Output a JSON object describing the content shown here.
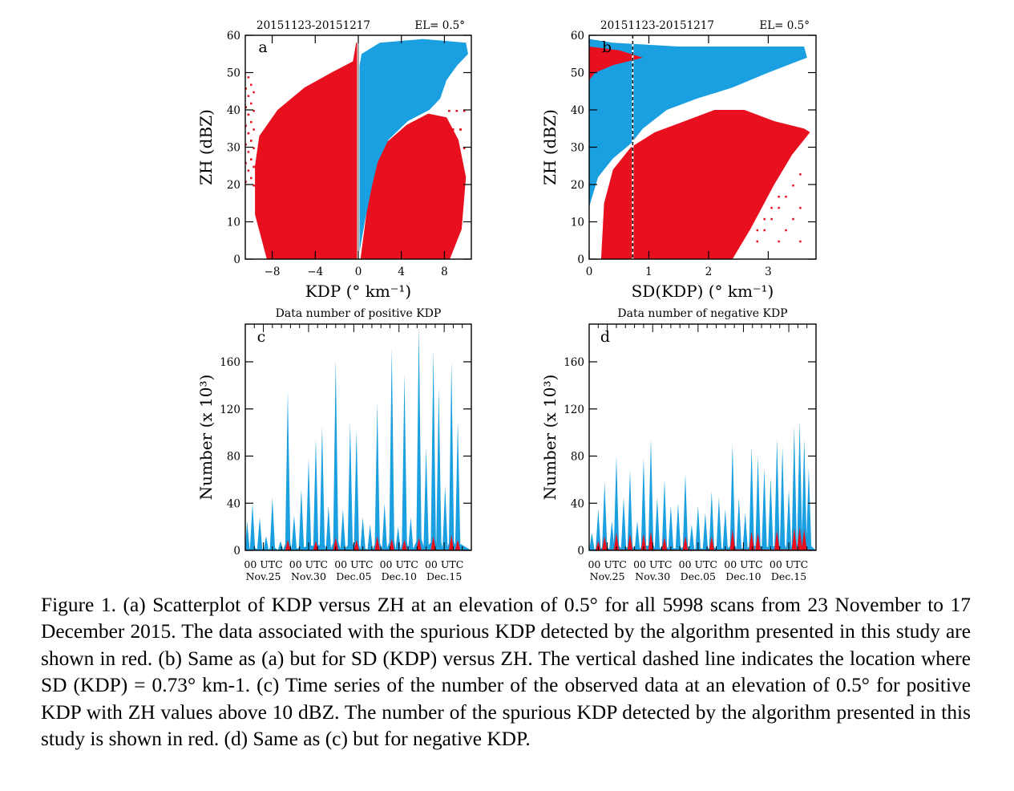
{
  "colors": {
    "blue": "#1a9fe0",
    "red": "#e8101e",
    "axis": "#000000"
  },
  "chart_data": [
    {
      "panel": "a",
      "type": "scatter",
      "header_left": "20151123-20151217",
      "header_right": "EL=  0.5°",
      "xlabel": "KDP (° km⁻¹)",
      "ylabel": "ZH (dBZ)",
      "xlim": [
        -10.5,
        10.5
      ],
      "ylim": [
        0,
        60
      ],
      "xticks": [
        "−8",
        "−4",
        "0",
        "4",
        "8"
      ],
      "xtick_values": [
        -8,
        -4,
        0,
        4,
        8
      ],
      "yticks": [
        "0",
        "10",
        "20",
        "30",
        "40",
        "50",
        "60"
      ],
      "ytick_values": [
        0,
        10,
        20,
        30,
        40,
        50,
        60
      ],
      "reference_line": {
        "x": 0,
        "style": "solid"
      },
      "series": [
        {
          "color": "red",
          "description_points": [
            [
              -8.5,
              0
            ],
            [
              -9.5,
              20
            ],
            [
              -9.3,
              30
            ],
            [
              -5,
              45
            ],
            [
              -0.3,
              54
            ]
          ]
        },
        {
          "color": "blue",
          "description_points": [
            [
              0,
              0
            ],
            [
              1.5,
              20
            ],
            [
              4,
              40
            ],
            [
              7.5,
              50
            ],
            [
              9.8,
              56
            ],
            [
              1,
              58
            ]
          ]
        }
      ]
    },
    {
      "panel": "b",
      "type": "scatter",
      "header_left": "20151123-20151217",
      "header_right": "EL=  0.5°",
      "xlabel": "SD(KDP) (° km⁻¹)",
      "ylabel": "ZH (dBZ)",
      "xlim": [
        0,
        3.8
      ],
      "ylim": [
        0,
        60
      ],
      "xticks": [
        "0",
        "1",
        "2",
        "3"
      ],
      "xtick_values": [
        0,
        1,
        2,
        3
      ],
      "yticks": [
        "0",
        "10",
        "20",
        "30",
        "40",
        "50",
        "60"
      ],
      "ytick_values": [
        0,
        10,
        20,
        30,
        40,
        50,
        60
      ],
      "reference_line": {
        "x": 0.73,
        "style": "dashed"
      },
      "series": [
        {
          "color": "blue",
          "description_points": [
            [
              0,
              20
            ],
            [
              0.7,
              30
            ],
            [
              2,
              43
            ],
            [
              3.6,
              56
            ]
          ]
        },
        {
          "color": "red",
          "description_points": [
            [
              0.25,
              0
            ],
            [
              0.7,
              30
            ],
            [
              2.5,
              40
            ],
            [
              3.7,
              35
            ]
          ]
        }
      ]
    },
    {
      "panel": "c",
      "type": "area",
      "title": "Data number of positive KDP",
      "ylabel": "Number (x 10³)",
      "ylim": [
        0,
        192
      ],
      "yticks": [
        "0",
        "40",
        "80",
        "120",
        "160"
      ],
      "ytick_values": [
        0,
        40,
        80,
        120,
        160
      ],
      "xticks_top": [
        "00 UTC",
        "00 UTC",
        "00 UTC",
        "00 UTC",
        "00 UTC"
      ],
      "xticks_bottom": [
        "Nov.25",
        "Nov.30",
        "Dec.05",
        "Dec.10",
        "Dec.15"
      ],
      "x_days": [
        2,
        7,
        12,
        17,
        22
      ],
      "xlim_days": [
        0,
        25
      ],
      "series": [
        {
          "name": "",
          "color": "blue",
          "peaks": [
            [
              0.2,
              25
            ],
            [
              0.8,
              40
            ],
            [
              1.6,
              28
            ],
            [
              2.3,
              12
            ],
            [
              3.0,
              45
            ],
            [
              3.9,
              8
            ],
            [
              4.7,
              135
            ],
            [
              5.4,
              30
            ],
            [
              6.2,
              52
            ],
            [
              7.0,
              78
            ],
            [
              7.8,
              95
            ],
            [
              8.5,
              105
            ],
            [
              9.2,
              38
            ],
            [
              10.0,
              162
            ],
            [
              10.8,
              35
            ],
            [
              11.6,
              108
            ],
            [
              12.3,
              102
            ],
            [
              13.0,
              28
            ],
            [
              13.8,
              22
            ],
            [
              14.6,
              125
            ],
            [
              15.4,
              40
            ],
            [
              16.2,
              172
            ],
            [
              16.9,
              20
            ],
            [
              17.6,
              150
            ],
            [
              18.3,
              28
            ],
            [
              19.2,
              190
            ],
            [
              20.0,
              88
            ],
            [
              20.8,
              170
            ],
            [
              21.4,
              138
            ],
            [
              22.1,
              55
            ],
            [
              22.8,
              160
            ],
            [
              23.5,
              110
            ]
          ]
        },
        {
          "name": "",
          "color": "red",
          "peaks": [
            [
              4.7,
              9
            ],
            [
              7.8,
              8
            ],
            [
              10.0,
              11
            ],
            [
              12.3,
              9
            ],
            [
              14.6,
              12
            ],
            [
              16.2,
              10
            ],
            [
              17.6,
              9
            ],
            [
              19.2,
              11
            ],
            [
              20.8,
              12
            ],
            [
              22.8,
              13
            ],
            [
              23.5,
              9
            ]
          ]
        }
      ]
    },
    {
      "panel": "d",
      "type": "area",
      "title": "Data number of negative KDP",
      "ylabel": "Number (x 10³)",
      "ylim": [
        0,
        192
      ],
      "yticks": [
        "0",
        "40",
        "80",
        "120",
        "160"
      ],
      "ytick_values": [
        0,
        40,
        80,
        120,
        160
      ],
      "xticks_top": [
        "00 UTC",
        "00 UTC",
        "00 UTC",
        "00 UTC",
        "00 UTC"
      ],
      "xticks_bottom": [
        "Nov.25",
        "Nov.30",
        "Dec.05",
        "Dec.10",
        "Dec.15"
      ],
      "x_days": [
        2,
        7,
        12,
        17,
        22
      ],
      "xlim_days": [
        0,
        25
      ],
      "series": [
        {
          "name": "",
          "color": "blue",
          "peaks": [
            [
              0.3,
              15
            ],
            [
              1.0,
              35
            ],
            [
              1.7,
              58
            ],
            [
              2.5,
              25
            ],
            [
              3.0,
              80
            ],
            [
              3.8,
              45
            ],
            [
              4.5,
              68
            ],
            [
              5.3,
              25
            ],
            [
              6.0,
              78
            ],
            [
              6.8,
              95
            ],
            [
              7.5,
              45
            ],
            [
              8.3,
              60
            ],
            [
              9.0,
              38
            ],
            [
              9.8,
              40
            ],
            [
              10.6,
              65
            ],
            [
              11.3,
              22
            ],
            [
              12.0,
              38
            ],
            [
              12.8,
              32
            ],
            [
              13.5,
              50
            ],
            [
              14.3,
              45
            ],
            [
              15.0,
              35
            ],
            [
              15.8,
              90
            ],
            [
              16.5,
              45
            ],
            [
              17.2,
              32
            ],
            [
              17.9,
              88
            ],
            [
              18.6,
              80
            ],
            [
              19.3,
              70
            ],
            [
              20.0,
              62
            ],
            [
              20.7,
              95
            ],
            [
              21.3,
              88
            ],
            [
              22.0,
              52
            ],
            [
              22.6,
              105
            ],
            [
              23.2,
              110
            ],
            [
              23.7,
              95
            ],
            [
              24.2,
              70
            ]
          ]
        },
        {
          "name": "",
          "color": "red",
          "peaks": [
            [
              1.0,
              8
            ],
            [
              1.7,
              12
            ],
            [
              3.0,
              15
            ],
            [
              4.5,
              14
            ],
            [
              6.0,
              14
            ],
            [
              6.8,
              16
            ],
            [
              8.3,
              11
            ],
            [
              10.6,
              12
            ],
            [
              13.5,
              12
            ],
            [
              15.8,
              18
            ],
            [
              17.9,
              16
            ],
            [
              18.6,
              15
            ],
            [
              20.7,
              17
            ],
            [
              22.6,
              19
            ],
            [
              23.2,
              20
            ],
            [
              23.7,
              18
            ]
          ]
        }
      ]
    }
  ],
  "caption": {
    "text": "Figure 1. (a) Scatterplot of KDP versus ZH at an elevation of 0.5° for all 5998 scans from 23 November to 17 December 2015. The data associated with the spurious KDP detected by the algorithm presented in this study are shown in red. (b) Same as (a) but for SD (KDP) versus ZH. The vertical dashed line indicates the location where SD (KDP) = 0.73° km-1. (c) Time series of the number of the observed data at an elevation of 0.5° for positive KDP with ZH values above 10 dBZ. The number of the spurious KDP detected by the algorithm presented in this study is shown in red. (d) Same as (c) but for negative KDP."
  }
}
